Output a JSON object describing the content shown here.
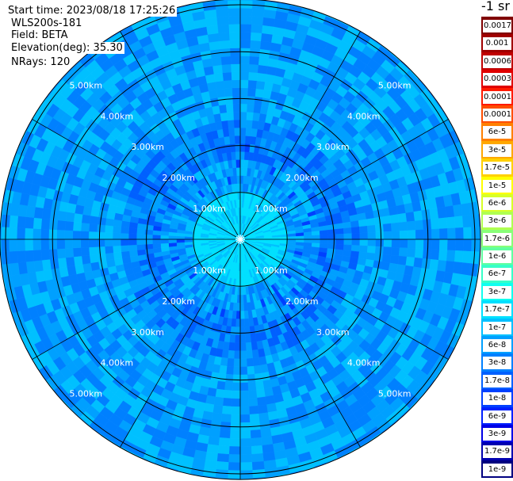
{
  "header": {
    "start_time": "Start time: 2023/08/18 17:25:26",
    "station": "WLS200s-181",
    "field": "Field: BETA",
    "elevation": "Elevation(deg): 35.30",
    "nrays": "NRays: 120"
  },
  "colorbar": {
    "unit": "-1 sr",
    "entries": [
      {
        "label": "0.0017",
        "color": "#800000"
      },
      {
        "label": "0.001",
        "color": "#a00000"
      },
      {
        "label": "0.0006",
        "color": "#c00000"
      },
      {
        "label": "0.0003",
        "color": "#e00000"
      },
      {
        "label": "0.00017",
        "color": "#ff1a00"
      },
      {
        "label": "0.0001",
        "color": "#ff4d00"
      },
      {
        "label": "6e-5",
        "color": "#ff8000"
      },
      {
        "label": "3e-5",
        "color": "#ffa800"
      },
      {
        "label": "1.7e-5",
        "color": "#ffd000"
      },
      {
        "label": "1e-5",
        "color": "#ffff00"
      },
      {
        "label": "6e-6",
        "color": "#d8ff28"
      },
      {
        "label": "3e-6",
        "color": "#b0ff50"
      },
      {
        "label": "1.7e-6",
        "color": "#88ff78"
      },
      {
        "label": "1e-6",
        "color": "#60ffa0"
      },
      {
        "label": "6e-7",
        "color": "#38ffc8"
      },
      {
        "label": "3e-7",
        "color": "#10ffef"
      },
      {
        "label": "1.7e-7",
        "color": "#00e0ff"
      },
      {
        "label": "1e-7",
        "color": "#00c0ff"
      },
      {
        "label": "6e-8",
        "color": "#00a0ff"
      },
      {
        "label": "3e-8",
        "color": "#0080ff"
      },
      {
        "label": "1.7e-8",
        "color": "#0060ff"
      },
      {
        "label": "1e-8",
        "color": "#0040ff"
      },
      {
        "label": "6e-9",
        "color": "#0020ff"
      },
      {
        "label": "3e-9",
        "color": "#0000e6"
      },
      {
        "label": "1.7e-9",
        "color": "#0000b0"
      },
      {
        "label": "1e-9",
        "color": "#000080"
      }
    ]
  },
  "chart_data": {
    "type": "heatmap",
    "projection": "polar PPI",
    "range_rings": [
      {
        "label": "1.00km",
        "value": 1.0
      },
      {
        "label": "2.00km",
        "value": 2.0
      },
      {
        "label": "3.00km",
        "value": 3.0
      },
      {
        "label": "4.00km",
        "value": 4.0
      },
      {
        "label": "5.00km",
        "value": 5.0
      }
    ],
    "max_range_km": 5.12,
    "azimuth_spokes_deg": [
      0,
      30,
      60,
      90,
      120,
      150,
      180,
      210,
      240,
      270,
      300,
      330
    ],
    "value_profile": [
      {
        "range_km": 0.0,
        "dominant": "3e-7"
      },
      {
        "range_km": 0.5,
        "dominant": "1.7e-7"
      },
      {
        "range_km": 1.0,
        "dominant": "6e-8"
      },
      {
        "range_km": 1.7,
        "dominant": "3e-8"
      },
      {
        "range_km": 2.5,
        "dominant": "6e-8"
      },
      {
        "range_km": 5.0,
        "dominant": "6e-8"
      }
    ]
  }
}
